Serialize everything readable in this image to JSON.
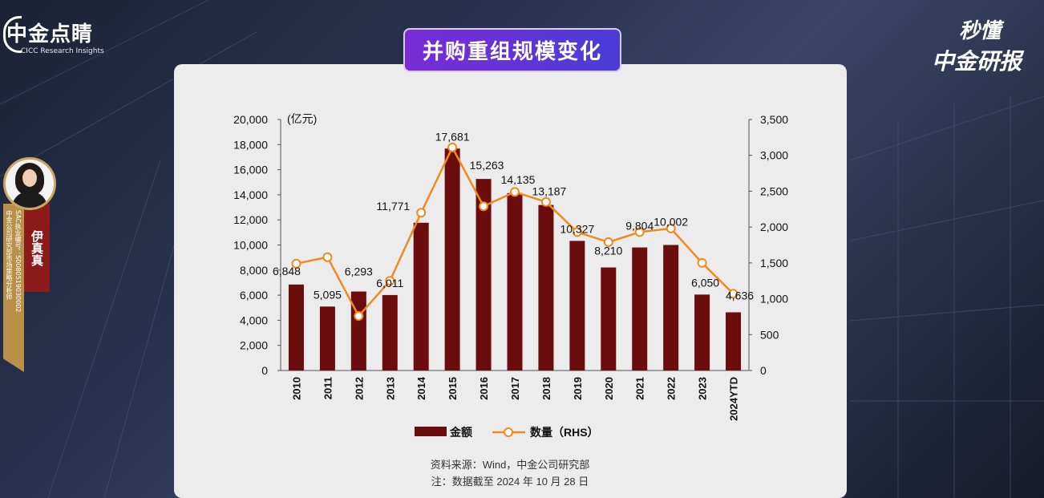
{
  "branding": {
    "left_cn": "中金点睛",
    "left_en": "CICC Research Insights",
    "right_line1": "秒懂",
    "right_line2": "中金研报"
  },
  "title": "并购重组规模变化",
  "analyst": {
    "name": "伊真真",
    "title": "中金公司研究部市场策略分析师",
    "cert": "SAC执业编号：S0080519030002"
  },
  "chart_data": {
    "type": "bar",
    "categories": [
      "2010",
      "2011",
      "2012",
      "2013",
      "2014",
      "2015",
      "2016",
      "2017",
      "2018",
      "2019",
      "2020",
      "2021",
      "2022",
      "2023",
      "2024YTD"
    ],
    "series": [
      {
        "name": "金额",
        "type": "bar",
        "axis": "left",
        "values": [
          6848,
          5095,
          6293,
          6011,
          11771,
          17681,
          15263,
          14135,
          13187,
          10327,
          8210,
          9804,
          10002,
          6050,
          4636
        ],
        "labels": [
          "6,848",
          "5,095",
          "6,293",
          "6,011",
          "11,771",
          "17,681",
          "15,263",
          "14,135",
          "13,187",
          "10,327",
          "8,210",
          "9,804",
          "10,002",
          "6,050",
          "4,636"
        ]
      },
      {
        "name": "数量（RHS）",
        "type": "line",
        "axis": "right",
        "values": [
          1490,
          1580,
          760,
          1250,
          2200,
          3110,
          2290,
          2490,
          2350,
          1930,
          1790,
          1930,
          1980,
          1500,
          1070
        ]
      }
    ],
    "ylabel": "(亿元)",
    "ylim": [
      0,
      20000
    ],
    "y_ticks": [
      "20,000",
      "18,000",
      "16,000",
      "14,000",
      "12,000",
      "10,000",
      "8,000",
      "6,000",
      "4,000",
      "2,000",
      "0"
    ],
    "y2lim": [
      0,
      3500
    ],
    "y2_ticks": [
      "3,500",
      "3,000",
      "2,500",
      "2,000",
      "1,500",
      "1,000",
      "500",
      "0"
    ],
    "legend": "bottom-center",
    "grid": false,
    "colors": {
      "bar": "#6b0d0d",
      "line": "#f0891e"
    }
  },
  "notes": {
    "source": "资料来源：Wind，中金公司研究部",
    "note": "注：数据截至 2024 年 10 月 28 日"
  }
}
